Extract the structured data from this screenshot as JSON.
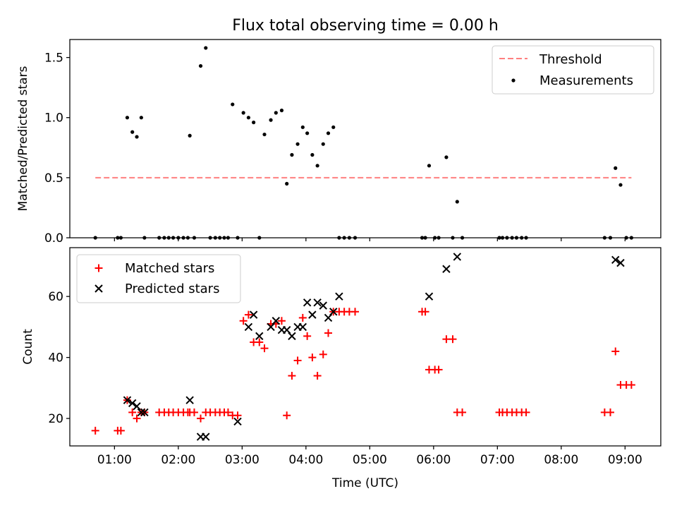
{
  "chart_data": [
    {
      "type": "scatter",
      "title": "Flux total observing time = 0.00 h",
      "xlabel": "",
      "ylabel": "Matched/Predicted stars",
      "xlim": [
        0.3,
        9.56
      ],
      "ylim": [
        0.0,
        1.65
      ],
      "yticks": [
        "0.0",
        "0.5",
        "1.0",
        "1.5"
      ],
      "grid": false,
      "legend_position": "top-right",
      "threshold": {
        "name": "Threshold",
        "value": 0.5,
        "x_range": [
          0.7,
          9.1
        ],
        "color": "#ff7f7f"
      },
      "series": [
        {
          "name": "Measurements",
          "color": "#000000",
          "marker": "dot",
          "x": [
            0.7,
            1.05,
            1.1,
            1.2,
            1.28,
            1.35,
            1.42,
            1.47,
            1.7,
            1.78,
            1.85,
            1.92,
            2.0,
            2.08,
            2.15,
            2.18,
            2.25,
            2.35,
            2.43,
            2.5,
            2.58,
            2.65,
            2.72,
            2.78,
            2.85,
            2.93,
            3.02,
            3.1,
            3.18,
            3.27,
            3.35,
            3.45,
            3.53,
            3.62,
            3.7,
            3.78,
            3.87,
            3.95,
            4.02,
            4.1,
            4.18,
            4.27,
            4.35,
            4.43,
            4.52,
            4.6,
            4.68,
            4.77,
            5.82,
            5.87,
            5.93,
            6.02,
            6.08,
            6.2,
            6.3,
            6.37,
            6.45,
            7.03,
            7.08,
            7.15,
            7.23,
            7.3,
            7.38,
            7.45,
            8.68,
            8.77,
            8.85,
            8.93,
            9.02,
            9.1
          ],
          "y": [
            0.0,
            0.0,
            0.0,
            1.0,
            0.88,
            0.84,
            1.0,
            0.0,
            0.0,
            0.0,
            0.0,
            0.0,
            0.0,
            0.0,
            0.0,
            0.85,
            0.0,
            1.43,
            1.58,
            0.0,
            0.0,
            0.0,
            0.0,
            0.0,
            1.11,
            0.0,
            1.04,
            1.0,
            0.96,
            0.0,
            0.86,
            0.98,
            1.04,
            1.06,
            0.45,
            0.69,
            0.78,
            0.92,
            0.87,
            0.69,
            0.6,
            0.78,
            0.87,
            0.92,
            0.0,
            0.0,
            0.0,
            0.0,
            0.0,
            0.0,
            0.6,
            0.0,
            0.0,
            0.67,
            0.0,
            0.3,
            0.0,
            0.0,
            0.0,
            0.0,
            0.0,
            0.0,
            0.0,
            0.0,
            0.0,
            0.0,
            0.58,
            0.44,
            0.0,
            0.0
          ]
        }
      ]
    },
    {
      "type": "scatter",
      "title": "",
      "xlabel": "Time (UTC)",
      "ylabel": "Count",
      "xlim": [
        0.3,
        9.56
      ],
      "ylim": [
        11,
        76
      ],
      "yticks": [
        "20",
        "40",
        "60"
      ],
      "xticks": [
        "01:00",
        "02:00",
        "03:00",
        "04:00",
        "05:00",
        "06:00",
        "07:00",
        "08:00",
        "09:00"
      ],
      "grid": false,
      "legend_position": "top-left",
      "series": [
        {
          "name": "Matched stars",
          "color": "#ff0000",
          "marker": "plus",
          "x": [
            0.7,
            1.05,
            1.1,
            1.2,
            1.28,
            1.35,
            1.42,
            1.47,
            1.7,
            1.78,
            1.85,
            1.92,
            2.0,
            2.08,
            2.15,
            2.18,
            2.25,
            2.35,
            2.43,
            2.5,
            2.58,
            2.65,
            2.72,
            2.78,
            2.85,
            2.93,
            3.02,
            3.1,
            3.18,
            3.27,
            3.35,
            3.45,
            3.53,
            3.62,
            3.7,
            3.78,
            3.87,
            3.95,
            4.02,
            4.1,
            4.18,
            4.27,
            4.35,
            4.43,
            4.52,
            4.6,
            4.68,
            4.77,
            5.82,
            5.87,
            5.93,
            6.02,
            6.08,
            6.2,
            6.3,
            6.37,
            6.45,
            7.03,
            7.08,
            7.15,
            7.23,
            7.3,
            7.38,
            7.45,
            8.68,
            8.77,
            8.85,
            8.93,
            9.02,
            9.1
          ],
          "y": [
            16,
            16,
            16,
            26,
            22,
            20,
            22,
            22,
            22,
            22,
            22,
            22,
            22,
            22,
            22,
            22,
            22,
            20,
            22,
            22,
            22,
            22,
            22,
            22,
            21,
            21,
            52,
            54,
            45,
            45,
            43,
            51,
            51,
            52,
            21,
            34,
            39,
            53,
            47,
            40,
            34,
            41,
            48,
            55,
            55,
            55,
            55,
            55,
            55,
            55,
            36,
            36,
            36,
            46,
            46,
            22,
            22,
            22,
            22,
            22,
            22,
            22,
            22,
            22,
            22,
            22,
            42,
            31,
            31,
            31
          ]
        },
        {
          "name": "Predicted stars",
          "color": "#000000",
          "marker": "x",
          "x": [
            1.2,
            1.28,
            1.35,
            1.42,
            1.47,
            2.18,
            2.35,
            2.43,
            2.93,
            3.1,
            3.18,
            3.27,
            3.45,
            3.53,
            3.62,
            3.7,
            3.78,
            3.87,
            3.95,
            4.02,
            4.1,
            4.18,
            4.27,
            4.35,
            4.43,
            4.52,
            5.93,
            6.2,
            6.37,
            8.85,
            8.93
          ],
          "y": [
            26,
            25,
            24,
            22,
            22,
            26,
            14,
            14,
            19,
            50,
            54,
            47,
            50,
            52,
            49,
            49,
            47,
            50,
            50,
            58,
            54,
            58,
            57,
            53,
            55,
            60,
            60,
            69,
            73,
            72,
            71
          ]
        }
      ]
    }
  ]
}
